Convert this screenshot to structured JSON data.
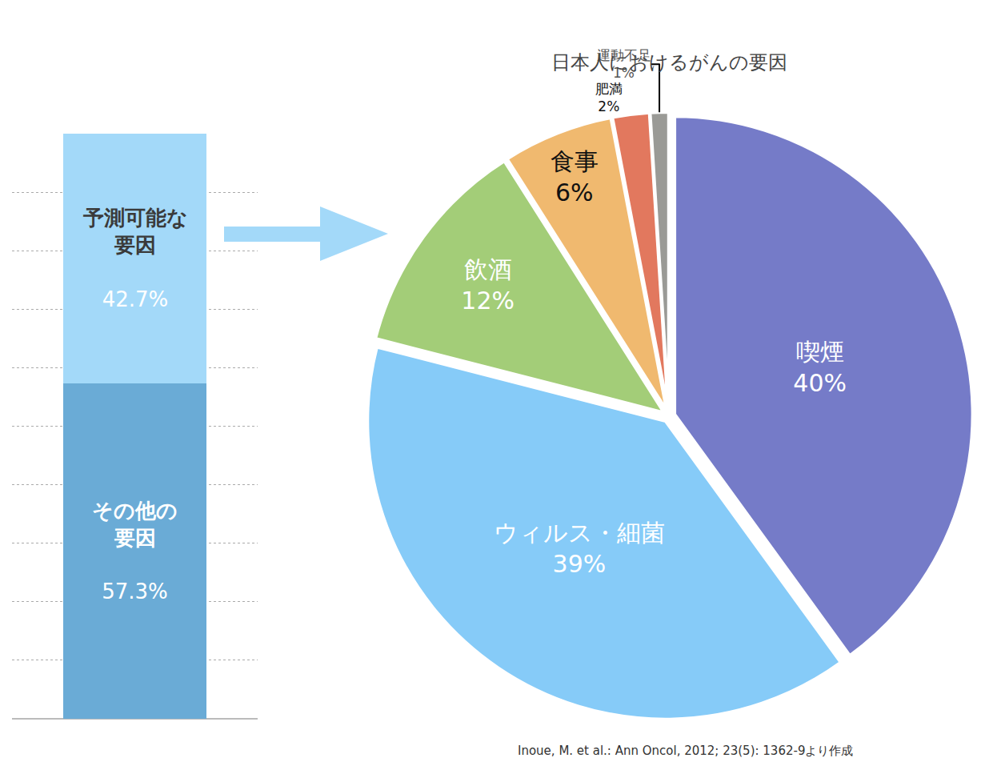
{
  "chart_data": [
    {
      "type": "bar",
      "stacked": true,
      "categories": [
        null
      ],
      "series": [
        {
          "name": "その他の\n要因",
          "values": [
            57.3
          ],
          "value_labels": [
            "57.3%"
          ],
          "color": "#6aabd6"
        },
        {
          "name": "予測可能な\n要因",
          "values": [
            42.7
          ],
          "value_labels": [
            "42.7%"
          ],
          "color": "#a3d9f9"
        }
      ],
      "ylim": [
        0,
        100
      ],
      "yticks": [
        0,
        10,
        20,
        30,
        40,
        50,
        60,
        70,
        80,
        90,
        100
      ],
      "grid": true,
      "tick_labels": false,
      "data_labels": true
    },
    {
      "type": "pie",
      "title": "日本人におけるがんの要因",
      "categories": [
        "喫煙",
        "ウィルス・細菌",
        "飲酒",
        "食事",
        "肥満",
        "運動不足"
      ],
      "values": [
        40,
        39,
        12,
        6,
        2,
        1
      ],
      "value_labels": [
        "40%",
        "39%",
        "12%",
        "6%",
        "2%",
        "1%"
      ],
      "colors": [
        "#757bc8",
        "#86cbf8",
        "#a3cd78",
        "#f0b96f",
        "#e2785e",
        "#9a9a96"
      ],
      "data_labels": true,
      "annotations": [
        "Inoue, M. et al.: Ann Oncol, 2012; 23(5): 1362-9より作成"
      ]
    }
  ]
}
